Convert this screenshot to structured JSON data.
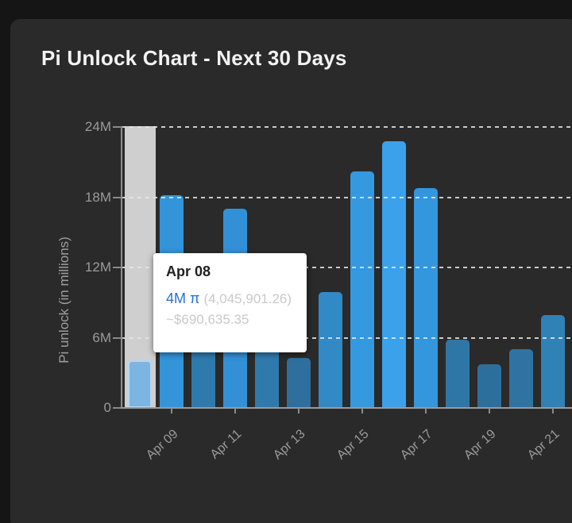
{
  "page": {
    "title": "Pi Unlock Chart - Next 30 Days"
  },
  "chart_data": {
    "type": "bar",
    "title": "Pi Unlock Chart - Next 30 Days",
    "xlabel": "",
    "ylabel": "Pi unlock (in millions)",
    "ylim": [
      0,
      24
    ],
    "unit": "millions of Pi",
    "grid": "horizontal dashed gridlines at 6M, 12M, 18M, 24M",
    "legend_position": "none",
    "y_tick_labels": [
      "0",
      "6M",
      "12M",
      "18M",
      "24M"
    ],
    "y_tick_values": [
      0,
      6,
      12,
      18,
      24
    ],
    "x_tick_labels": [
      "Apr 09",
      "Apr 11",
      "Apr 13",
      "Apr 15",
      "Apr 17",
      "Apr 19",
      "Apr 21"
    ],
    "x_tick_day_indices": [
      1,
      3,
      5,
      7,
      9,
      11,
      13
    ],
    "categories": [
      "Apr 08",
      "Apr 09",
      "Apr 10",
      "Apr 11",
      "Apr 12",
      "Apr 13",
      "Apr 14",
      "Apr 15",
      "Apr 16",
      "Apr 17",
      "Apr 18",
      "Apr 19",
      "Apr 20",
      "Apr 21"
    ],
    "values": [
      4.05,
      18.2,
      6.5,
      17.0,
      6.5,
      4.3,
      9.9,
      20.2,
      22.8,
      18.8,
      5.8,
      3.75,
      5.0,
      7.9
    ],
    "values_note": "Apr 10 and Apr 12 tops are hidden behind the tooltip; their values are estimates",
    "bar_colors": [
      "#7cb5e2",
      "#3494da",
      "#2f7aad",
      "#3390d6",
      "#2f7aad",
      "#2e6f9d",
      "#3189c6",
      "#3599e0",
      "#3ba1ea",
      "#3496dc",
      "#2e76a6",
      "#2d6f9c",
      "#2e73a2",
      "#3081b6"
    ],
    "highlighted_category": "Apr 08",
    "highlight_column_color": "#cfcfcf"
  },
  "tooltip": {
    "date": "Apr 08",
    "pi_amount": "4M π",
    "pi_exact": "(4,045,901.26)",
    "usd_value": "~$690,635.35"
  },
  "colors": {
    "page_background": "#151515",
    "card_background": "#2a2a2a",
    "title_text": "#f2f2f2",
    "axis_text": "#9a9a9a",
    "axis_line": "#8d8d8d",
    "gridline": "#e6e6e6",
    "tooltip_background": "#ffffff",
    "tooltip_value_blue": "#2571d3",
    "tooltip_muted_text": "#c9c9c9"
  }
}
